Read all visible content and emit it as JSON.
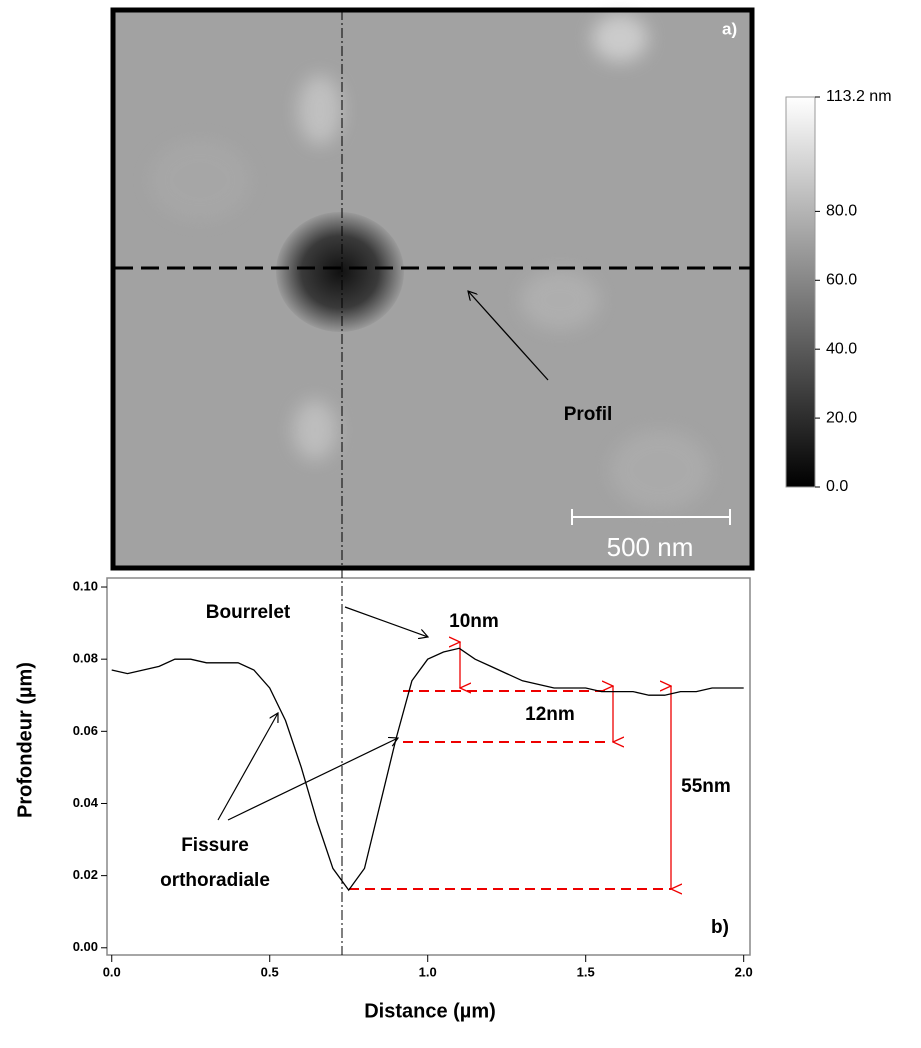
{
  "chart_data": [
    {
      "type": "image",
      "label": "a)",
      "annotation": "Profil",
      "scale_bar_label": "500 nm",
      "colorbar_lim": [
        0,
        113.2
      ],
      "colorbar_ticks": [
        {
          "value": 0,
          "label": "0.0"
        },
        {
          "value": 20,
          "label": "20.0"
        },
        {
          "value": 40,
          "label": "40.0"
        },
        {
          "value": 60,
          "label": "60.0"
        },
        {
          "value": 80,
          "label": "80.0"
        },
        {
          "value": 113.2,
          "label": "113.2 nm"
        }
      ]
    },
    {
      "type": "line",
      "x_label": "Distance (µm)",
      "y_label": "Profondeur (µm)",
      "color": "#000000",
      "annotations": [
        "Bourrelet",
        "10nm",
        "12nm",
        "55nm",
        "Fissure",
        "orthoradiale",
        "b)"
      ],
      "x": [
        0,
        0.05,
        0.1,
        0.15,
        0.2,
        0.25,
        0.3,
        0.35,
        0.4,
        0.45,
        0.5,
        0.55,
        0.6,
        0.65,
        0.7,
        0.75,
        0.8,
        0.85,
        0.9,
        0.95,
        1.0,
        1.05,
        1.1,
        1.15,
        1.2,
        1.25,
        1.3,
        1.35,
        1.4,
        1.45,
        1.5,
        1.55,
        1.6,
        1.65,
        1.7,
        1.75,
        1.8,
        1.85,
        1.9,
        1.95,
        2.0
      ],
      "values": [
        0.077,
        0.076,
        0.077,
        0.078,
        0.08,
        0.08,
        0.079,
        0.079,
        0.079,
        0.077,
        0.072,
        0.063,
        0.05,
        0.035,
        0.022,
        0.016,
        0.022,
        0.04,
        0.058,
        0.074,
        0.08,
        0.082,
        0.083,
        0.08,
        0.078,
        0.076,
        0.074,
        0.073,
        0.072,
        0.072,
        0.072,
        0.071,
        0.071,
        0.071,
        0.07,
        0.07,
        0.071,
        0.071,
        0.072,
        0.072,
        0.072
      ],
      "xlim": [
        -0.015,
        2.02
      ],
      "ylim": [
        -0.002,
        0.1025
      ],
      "xticks": [
        {
          "value": 0,
          "label": "0.0"
        },
        {
          "value": 0.5,
          "label": "0.5"
        },
        {
          "value": 1,
          "label": "1.0"
        },
        {
          "value": 1.5,
          "label": "1.5"
        },
        {
          "value": 2,
          "label": "2.0"
        }
      ],
      "yticks": [
        {
          "value": 0,
          "label": "0.00"
        },
        {
          "value": 0.02,
          "label": "0.02"
        },
        {
          "value": 0.04,
          "label": "0.04"
        },
        {
          "value": 0.06,
          "label": "0.06"
        },
        {
          "value": 0.08,
          "label": "0.08"
        },
        {
          "value": 0.1,
          "label": "0.10"
        }
      ]
    }
  ]
}
